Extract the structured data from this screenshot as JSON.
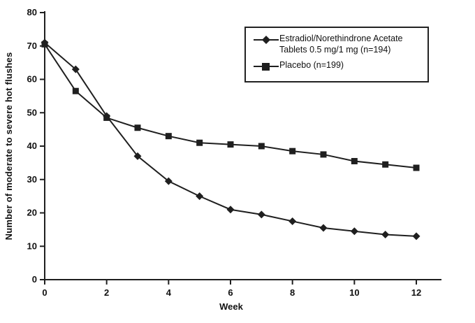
{
  "chart_data": {
    "type": "line",
    "title": "",
    "xlabel": "Week",
    "ylabel": "Number of moderate to severe hot flushes",
    "xlim": [
      0,
      12
    ],
    "ylim": [
      0,
      80
    ],
    "xticks": [
      0,
      2,
      4,
      6,
      8,
      10,
      12
    ],
    "yticks": [
      0,
      10,
      20,
      30,
      40,
      50,
      60,
      70,
      80
    ],
    "x": [
      0,
      1,
      2,
      3,
      4,
      5,
      6,
      7,
      8,
      9,
      10,
      11,
      12
    ],
    "series": [
      {
        "name": "Estradiol/Norethindrone Acetate Tablets 0.5 mg/1 mg (n=194)",
        "marker": "diamond",
        "values": [
          71,
          63,
          49,
          37,
          29.5,
          25,
          21,
          19.5,
          17.5,
          15.5,
          14.5,
          13.5,
          13
        ]
      },
      {
        "name": "Placebo (n=199)",
        "marker": "square",
        "values": [
          70.5,
          56.5,
          48.5,
          45.5,
          43,
          41,
          40.5,
          40,
          38.5,
          37.5,
          35.5,
          34.5,
          33.5
        ]
      }
    ],
    "line_color": "#1f1f1f",
    "grid": false,
    "legend_position": "top-right"
  }
}
